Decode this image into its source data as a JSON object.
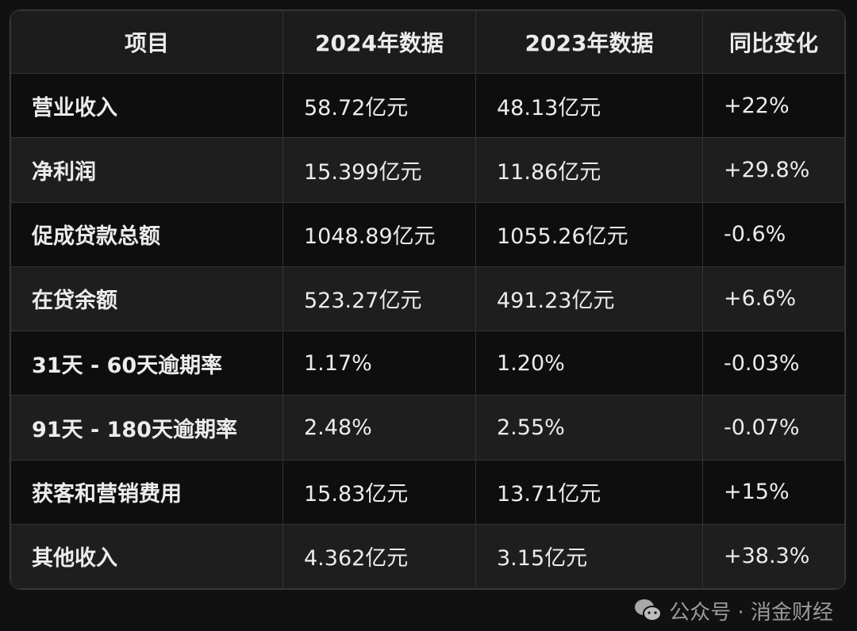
{
  "headers": [
    "项目",
    "2024年数据",
    "2023年数据",
    "同比变化"
  ],
  "rows": [
    [
      "营业收入",
      "58.72亿元",
      "48.13亿元",
      "+22%"
    ],
    [
      "净利润",
      "15.399亿元",
      "11.86亿元",
      "+29.8%"
    ],
    [
      "促成贷款总额",
      "1048.89亿元",
      "1055.26亿元",
      "-0.6%"
    ],
    [
      "在贷余额",
      "523.27亿元",
      "491.23亿元",
      "+6.6%"
    ],
    [
      "31天 - 60天逾期率",
      "1.17%",
      "1.20%",
      "-0.03%"
    ],
    [
      "91天 - 180天逾期率",
      "2.48%",
      "2.55%",
      "-0.07%"
    ],
    [
      "获客和营销费用",
      "15.83亿元",
      "13.71亿元",
      "+15%"
    ],
    [
      "其他收入",
      "4.362亿元",
      "3.15亿元",
      "+38.3%"
    ]
  ],
  "watermark": {
    "text": "公众号 · 消金财经",
    "icon": "wechat-icon"
  }
}
